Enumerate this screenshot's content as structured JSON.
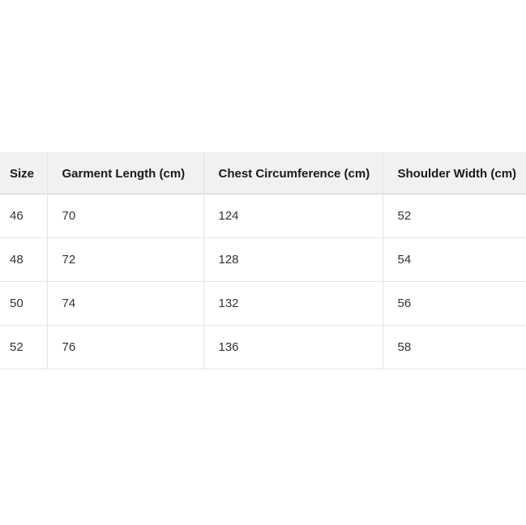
{
  "chart_data": {
    "type": "table",
    "title": "",
    "columns": [
      "Size",
      "Garment Length (cm)",
      "Chest Circumference (cm)",
      "Shoulder Width (cm)"
    ],
    "rows": [
      [
        46,
        70,
        124,
        52
      ],
      [
        48,
        72,
        128,
        54
      ],
      [
        50,
        74,
        132,
        56
      ],
      [
        52,
        76,
        136,
        58
      ]
    ]
  },
  "ui": {
    "colors": {
      "header_bg": "#f1f1f1",
      "header_text": "#1a1a1a",
      "body_text": "#333333",
      "header_border_bottom": "#d2d2d2",
      "row_border": "#e7e7e7",
      "column_border": "#e4e4e4",
      "outer_border": "#ececec",
      "page_bg": "#ffffff"
    }
  }
}
